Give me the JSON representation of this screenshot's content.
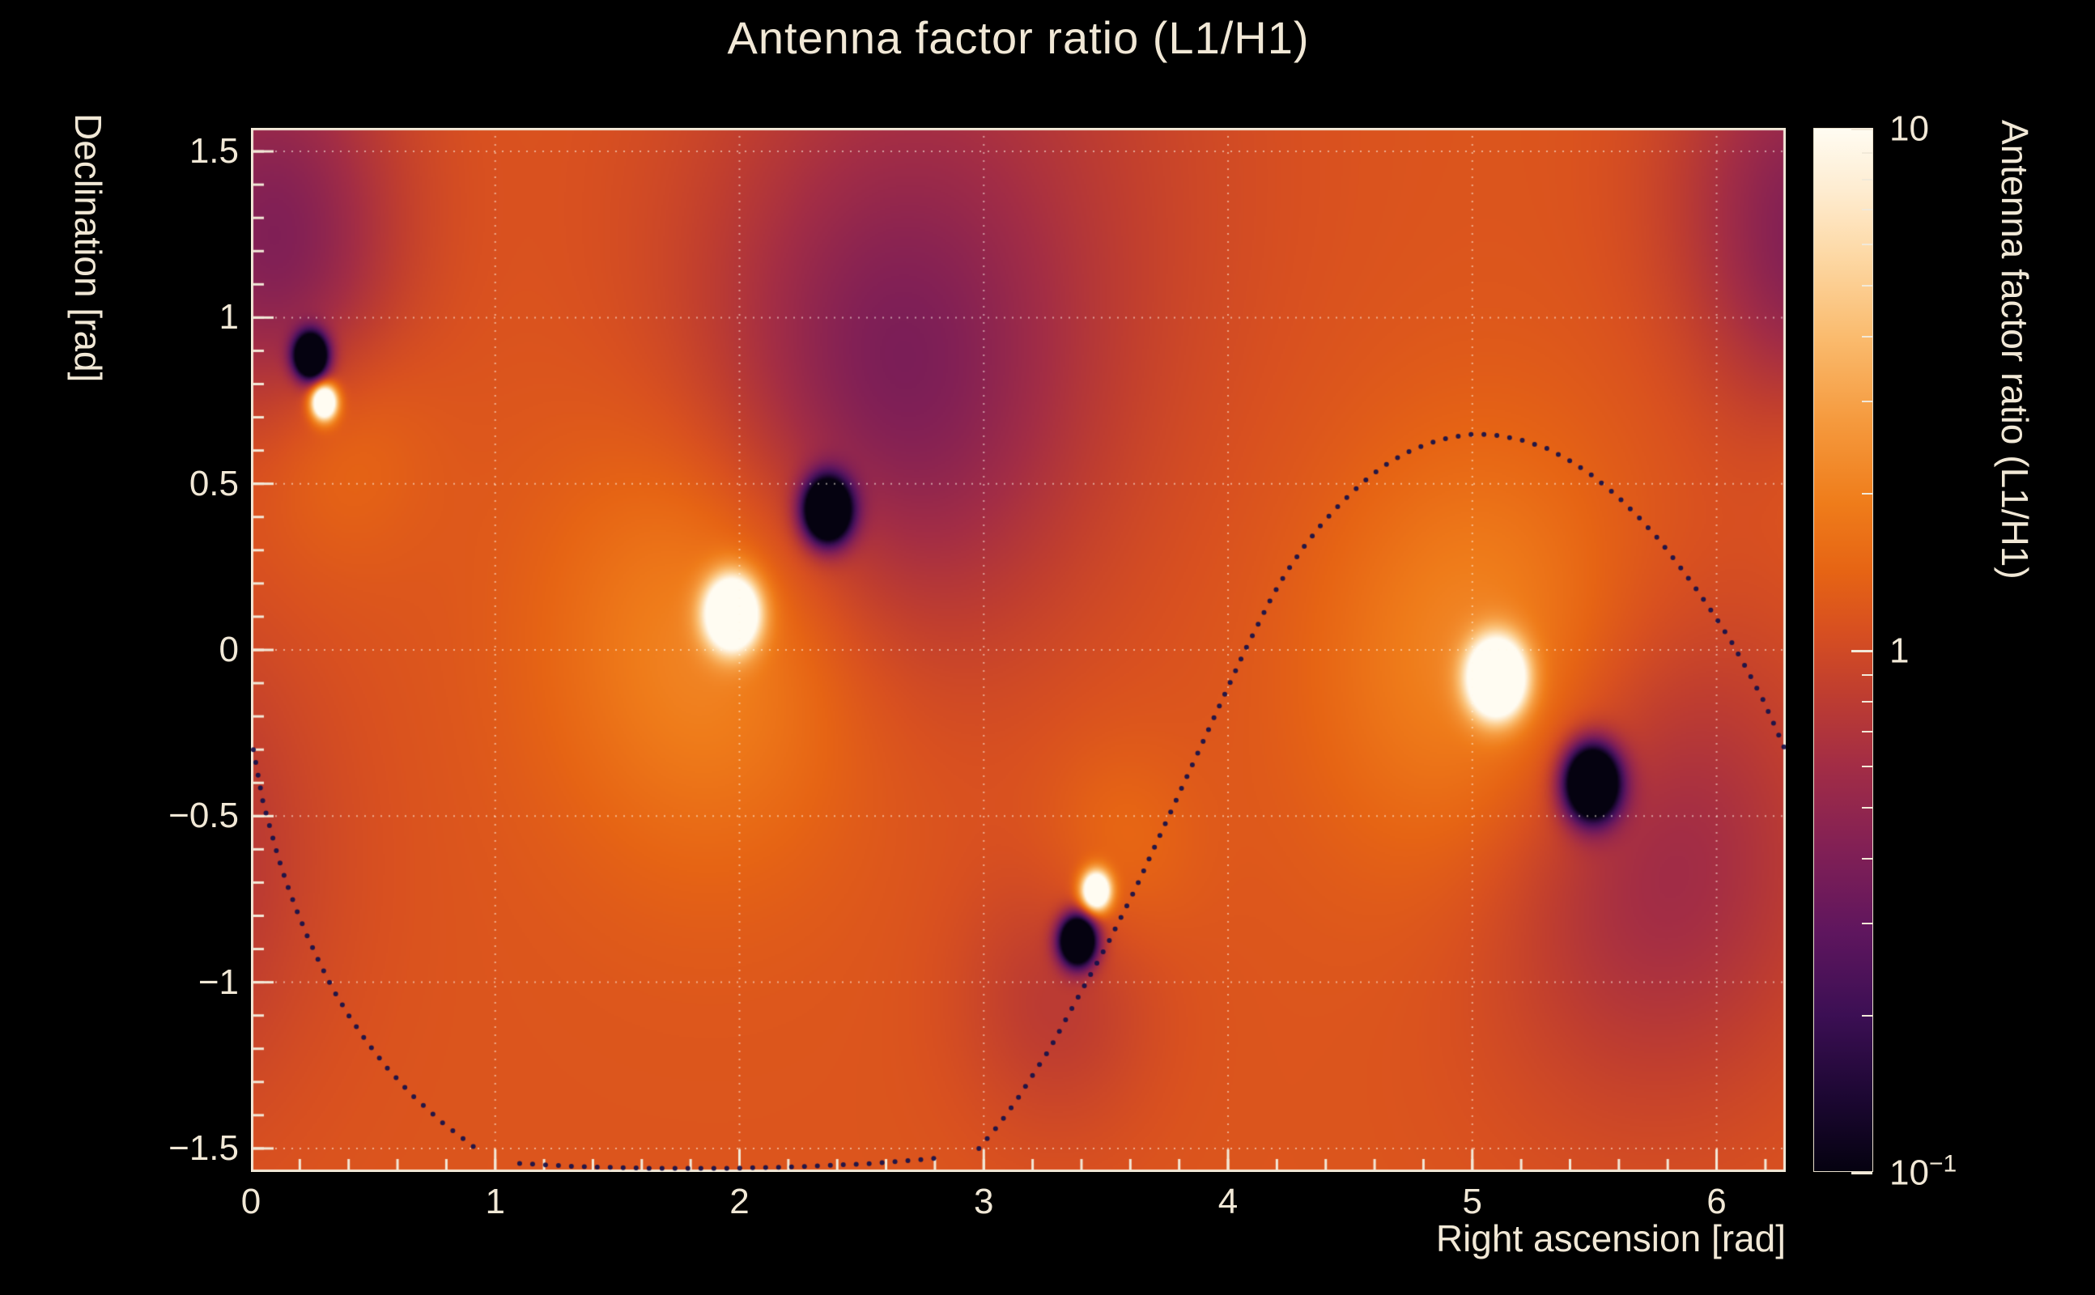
{
  "title": "Antenna factor ratio (L1/H1)",
  "colors": {
    "background": "#000000",
    "text": "#f1e8d6",
    "frame": "#f2e9d8",
    "grid": "rgba(255,250,235,0.55)",
    "curve_dot": "#14104a"
  },
  "axes": {
    "x": {
      "title": "Right ascension [rad]",
      "min": 0,
      "max": 6.283185307,
      "values": [
        0,
        1,
        2,
        3,
        4,
        5,
        6
      ],
      "labels": [
        "0",
        "1",
        "2",
        "3",
        "4",
        "5",
        "6"
      ],
      "minor_step": 0.2,
      "grid": [
        1,
        2,
        3,
        4,
        5,
        6
      ]
    },
    "y": {
      "title": "Declination [rad]",
      "min": -1.5707963,
      "max": 1.5707963,
      "values": [
        1.5,
        1,
        0.5,
        0,
        -0.5,
        -1,
        -1.5
      ],
      "labels": [
        "1.5",
        "1",
        "0.5",
        "0",
        "−0.5",
        "−1",
        "−1.5"
      ],
      "minor_step": 0.1,
      "grid": [
        -1.5,
        -1,
        -0.5,
        0,
        0.5,
        1,
        1.5
      ]
    }
  },
  "colorbar": {
    "title": "Antenna factor ratio (L1/H1)",
    "scale": "log",
    "range": [
      0.1,
      10
    ],
    "labels": [
      {
        "text": "10",
        "sup": "",
        "log": 1
      },
      {
        "text": "1",
        "sup": "",
        "log": 0
      },
      {
        "text": "10",
        "sup": "−1",
        "log": -1
      }
    ],
    "tick_values": [
      0.1,
      0.2,
      0.3,
      0.4,
      0.5,
      0.6,
      0.7,
      0.8,
      0.9,
      1,
      2,
      3,
      4,
      5,
      6,
      7,
      8,
      9,
      10
    ],
    "major_tick_values": [
      0.1,
      1,
      10
    ]
  },
  "chart_data": {
    "type": "heatmap",
    "title": "Antenna factor ratio (L1/H1)",
    "xlabel": "Right ascension [rad]",
    "ylabel": "Declination [rad]",
    "zlabel": "Antenna factor ratio (L1/H1)",
    "x_range": [
      0,
      6.283185307
    ],
    "y_range": [
      -1.5707963,
      1.5707963
    ],
    "z_scale": "log",
    "z_range": [
      0.1,
      10
    ],
    "background_log10_ratio": 0.07,
    "notable_points": [
      {
        "kind": "maximum",
        "ra": 0.3,
        "dec": 0.745,
        "ratio": ">10"
      },
      {
        "kind": "minimum",
        "ra": 0.245,
        "dec": 0.885,
        "ratio": "<0.1"
      },
      {
        "kind": "maximum",
        "ra": 1.97,
        "dec": 0.11,
        "ratio": ">10"
      },
      {
        "kind": "minimum",
        "ra": 2.36,
        "dec": 0.42,
        "ratio": "<0.1"
      },
      {
        "kind": "maximum",
        "ra": 3.46,
        "dec": -0.725,
        "ratio": ">10"
      },
      {
        "kind": "minimum",
        "ra": 3.385,
        "dec": -0.875,
        "ratio": "<0.1"
      },
      {
        "kind": "maximum",
        "ra": 5.1,
        "dec": -0.085,
        "ratio": ">10"
      },
      {
        "kind": "minimum",
        "ra": 5.49,
        "dec": -0.4,
        "ratio": "<0.1"
      }
    ],
    "features": [
      {
        "kind": "peak",
        "ra": 0.3,
        "dec": 0.745,
        "log10_amp": 2.0,
        "sigma_rad": 0.035
      },
      {
        "kind": "dip",
        "ra": 0.245,
        "dec": 0.885,
        "log10_amp": -2.3,
        "sigma_rad": 0.045
      },
      {
        "kind": "broad",
        "ra": 0.15,
        "dec": 1.0,
        "log10_amp": -0.2,
        "sigma_rad": 0.3
      },
      {
        "kind": "broad",
        "ra": 0.35,
        "dec": 0.65,
        "log10_amp": 0.15,
        "sigma_rad": 0.25
      },
      {
        "kind": "peak",
        "ra": 1.97,
        "dec": 0.11,
        "log10_amp": 2.0,
        "sigma_rad": 0.075
      },
      {
        "kind": "broad",
        "ra": 1.9,
        "dec": 0.05,
        "log10_amp": 0.3,
        "sigma_rad": 0.45
      },
      {
        "kind": "dip",
        "ra": 2.36,
        "dec": 0.42,
        "log10_amp": -2.3,
        "sigma_rad": 0.065
      },
      {
        "kind": "broad",
        "ra": 2.6,
        "dec": 0.75,
        "log10_amp": -0.38,
        "sigma_rad": 0.52
      },
      {
        "kind": "broad",
        "ra": 2.9,
        "dec": 1.45,
        "log10_amp": -0.18,
        "sigma_rad": 0.75
      },
      {
        "kind": "peak",
        "ra": 3.46,
        "dec": -0.725,
        "log10_amp": 1.9,
        "sigma_rad": 0.04
      },
      {
        "kind": "dip",
        "ra": 3.385,
        "dec": -0.875,
        "log10_amp": -2.3,
        "sigma_rad": 0.05
      },
      {
        "kind": "broad",
        "ra": 3.3,
        "dec": -1.05,
        "log10_amp": -0.18,
        "sigma_rad": 0.28
      },
      {
        "kind": "broad",
        "ra": 3.55,
        "dec": -0.6,
        "log10_amp": 0.12,
        "sigma_rad": 0.22
      },
      {
        "kind": "peak",
        "ra": 5.1,
        "dec": -0.085,
        "log10_amp": 2.1,
        "sigma_rad": 0.08
      },
      {
        "kind": "broad",
        "ra": 5.05,
        "dec": -0.05,
        "log10_amp": 0.3,
        "sigma_rad": 0.45
      },
      {
        "kind": "dip",
        "ra": 5.49,
        "dec": -0.4,
        "log10_amp": -2.3,
        "sigma_rad": 0.075
      },
      {
        "kind": "broad",
        "ra": 5.75,
        "dec": -0.62,
        "log10_amp": -0.33,
        "sigma_rad": 0.5
      },
      {
        "kind": "broad",
        "ra": 6.35,
        "dec": 1.4,
        "log10_amp": -0.35,
        "sigma_rad": 0.38
      }
    ],
    "palette_stops": [
      {
        "u": 0.0,
        "c": "#050210"
      },
      {
        "u": 0.07,
        "c": "#1c0732"
      },
      {
        "u": 0.15,
        "c": "#3c0f54"
      },
      {
        "u": 0.23,
        "c": "#5f165e"
      },
      {
        "u": 0.31,
        "c": "#822055"
      },
      {
        "u": 0.39,
        "c": "#a32d45"
      },
      {
        "u": 0.46,
        "c": "#c03e2f"
      },
      {
        "u": 0.52,
        "c": "#d85020"
      },
      {
        "u": 0.575,
        "c": "#e66414"
      },
      {
        "u": 0.64,
        "c": "#ef7c1a"
      },
      {
        "u": 0.72,
        "c": "#f59a3e"
      },
      {
        "u": 0.8,
        "c": "#fabb6e"
      },
      {
        "u": 0.88,
        "c": "#fdd9a6"
      },
      {
        "u": 0.94,
        "c": "#feecd0"
      },
      {
        "u": 1.0,
        "c": "#fffcf2"
      }
    ],
    "overlay_curve_points": [
      [
        [
          0.01,
          -0.3
        ],
        [
          0.03,
          -0.38
        ],
        [
          0.05,
          -0.46
        ],
        [
          0.08,
          -0.54
        ],
        [
          0.11,
          -0.62
        ],
        [
          0.145,
          -0.7
        ],
        [
          0.185,
          -0.78
        ],
        [
          0.23,
          -0.86
        ],
        [
          0.28,
          -0.94
        ],
        [
          0.335,
          -1.02
        ],
        [
          0.4,
          -1.1
        ],
        [
          0.475,
          -1.18
        ],
        [
          0.56,
          -1.26
        ],
        [
          0.66,
          -1.34
        ],
        [
          0.78,
          -1.42
        ],
        [
          0.92,
          -1.5
        ]
      ],
      [
        [
          1.1,
          -1.545
        ],
        [
          1.35,
          -1.555
        ],
        [
          1.65,
          -1.56
        ],
        [
          1.95,
          -1.56
        ],
        [
          2.25,
          -1.555
        ],
        [
          2.55,
          -1.545
        ],
        [
          2.8,
          -1.53
        ]
      ],
      [
        [
          2.98,
          -1.5
        ],
        [
          3.06,
          -1.43
        ],
        [
          3.13,
          -1.36
        ],
        [
          3.2,
          -1.28
        ],
        [
          3.27,
          -1.2
        ],
        [
          3.33,
          -1.12
        ],
        [
          3.39,
          -1.04
        ],
        [
          3.45,
          -0.96
        ],
        [
          3.51,
          -0.88
        ],
        [
          3.565,
          -0.8
        ],
        [
          3.62,
          -0.72
        ],
        [
          3.67,
          -0.64
        ],
        [
          3.72,
          -0.56
        ],
        [
          3.77,
          -0.48
        ],
        [
          3.82,
          -0.4
        ],
        [
          3.87,
          -0.32
        ],
        [
          3.92,
          -0.24
        ],
        [
          3.97,
          -0.16
        ],
        [
          4.02,
          -0.08
        ],
        [
          4.07,
          0.0
        ],
        [
          4.125,
          0.08
        ],
        [
          4.18,
          0.16
        ],
        [
          4.24,
          0.235
        ],
        [
          4.31,
          0.31
        ],
        [
          4.385,
          0.38
        ],
        [
          4.46,
          0.44
        ],
        [
          4.545,
          0.5
        ],
        [
          4.63,
          0.55
        ],
        [
          4.72,
          0.59
        ],
        [
          4.815,
          0.62
        ],
        [
          4.91,
          0.64
        ],
        [
          5.01,
          0.65
        ],
        [
          5.11,
          0.645
        ],
        [
          5.21,
          0.63
        ],
        [
          5.31,
          0.605
        ],
        [
          5.41,
          0.565
        ],
        [
          5.5,
          0.52
        ],
        [
          5.59,
          0.465
        ],
        [
          5.68,
          0.4
        ],
        [
          5.76,
          0.335
        ],
        [
          5.84,
          0.26
        ],
        [
          5.915,
          0.185
        ],
        [
          5.99,
          0.105
        ],
        [
          6.06,
          0.025
        ],
        [
          6.125,
          -0.06
        ],
        [
          6.19,
          -0.15
        ],
        [
          6.245,
          -0.24
        ],
        [
          6.28,
          -0.3
        ]
      ]
    ]
  }
}
